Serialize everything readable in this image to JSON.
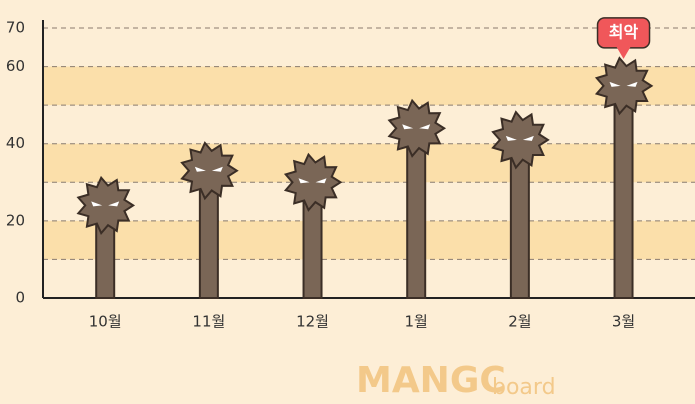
{
  "chart_data": {
    "type": "lollipop",
    "categories": [
      "10월",
      "11월",
      "12월",
      "1월",
      "2월",
      "3월"
    ],
    "values": [
      24,
      33,
      30,
      44,
      41,
      55
    ],
    "color": "#7a6656",
    "ylim": [
      0,
      70
    ],
    "yticks": [
      0,
      20,
      40,
      60,
      70
    ],
    "minor_yticks": [
      10,
      30,
      50
    ],
    "grid": true,
    "annotation": {
      "text": "최악",
      "category_index": 5,
      "color": "#f0575a"
    },
    "watermark_brand": "MANGC",
    "watermark_suffix": "board"
  }
}
